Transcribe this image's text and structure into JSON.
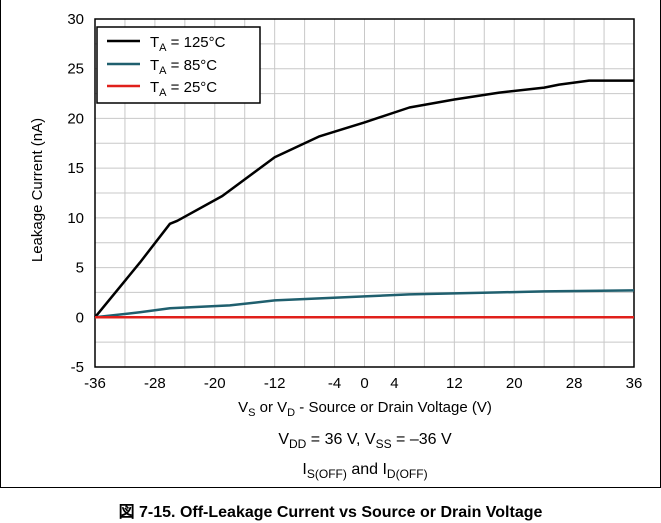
{
  "caption": "図 7-15. Off-Leakage Current vs Source or Drain Voltage",
  "chart_data": {
    "type": "line",
    "xlabel": {
      "main": "V",
      "s1": "S",
      "mid": " or V",
      "s2": "D",
      "rest": " - Source or Drain Voltage (V)"
    },
    "ylabel": "Leakage Current (nA)",
    "xlim": [
      -36,
      36
    ],
    "ylim": [
      -5,
      30
    ],
    "xticks": [
      -36,
      -28,
      -20,
      -12,
      -4,
      0,
      4,
      12,
      20,
      28,
      36
    ],
    "yticks": [
      -5,
      0,
      5,
      10,
      15,
      20,
      25,
      30
    ],
    "conditions": {
      "line1": {
        "a": "V",
        "a_sub": "DD",
        "b": " = 36 V, V",
        "b_sub": "SS",
        "c": " = –36 V"
      },
      "line2": {
        "a": "I",
        "a_sub": "S(OFF)",
        "b": " and I",
        "b_sub": "D(OFF)"
      }
    },
    "legend_position": "top-left",
    "grid": true,
    "series": [
      {
        "name": {
          "pre": "T",
          "sub": "A",
          "post": " = 125°C"
        },
        "color": "#000000",
        "x": [
          -36,
          -30,
          -26,
          -25,
          -19,
          -12,
          -6,
          0,
          6,
          12,
          18,
          24,
          26,
          30,
          36
        ],
        "y": [
          0,
          5.5,
          9.4,
          9.7,
          12.2,
          16.1,
          18.2,
          19.6,
          21.1,
          21.9,
          22.6,
          23.1,
          23.4,
          23.8,
          23.8
        ]
      },
      {
        "name": {
          "pre": "T",
          "sub": "A",
          "post": " = 85°C"
        },
        "color": "#1f5f6e",
        "x": [
          -36,
          -30,
          -26,
          -18,
          -12,
          -6,
          0,
          6,
          12,
          18,
          24,
          30,
          36
        ],
        "y": [
          0,
          0.5,
          0.9,
          1.2,
          1.7,
          1.9,
          2.1,
          2.3,
          2.4,
          2.5,
          2.6,
          2.65,
          2.7
        ]
      },
      {
        "name": {
          "pre": "T",
          "sub": "A",
          "post": " = 25°C"
        },
        "color": "#e0201b",
        "x": [
          -36,
          36
        ],
        "y": [
          0,
          0
        ]
      }
    ]
  }
}
